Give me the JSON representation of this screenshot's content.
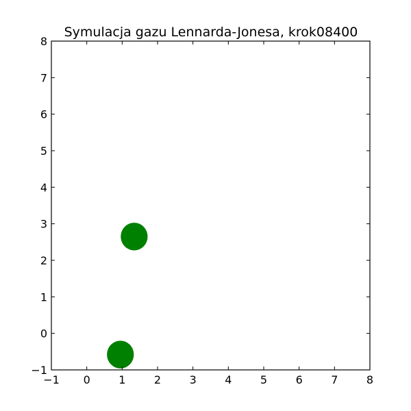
{
  "chart_data": {
    "type": "scatter",
    "title": "Symulacja gazu Lennarda-Jonesa, krok08400",
    "xlabel": "",
    "ylabel": "",
    "xlim": [
      -1,
      8
    ],
    "ylim": [
      -1,
      8
    ],
    "x_ticks": [
      -1,
      0,
      1,
      2,
      3,
      4,
      5,
      6,
      7,
      8
    ],
    "y_ticks": [
      -1,
      0,
      1,
      2,
      3,
      4,
      5,
      6,
      7,
      8
    ],
    "x_tick_labels": [
      "−1",
      "0",
      "1",
      "2",
      "3",
      "4",
      "5",
      "6",
      "7",
      "8"
    ],
    "y_tick_labels": [
      "−1",
      "0",
      "1",
      "2",
      "3",
      "4",
      "5",
      "6",
      "7",
      "8"
    ],
    "grid": false,
    "marker_color": "#008000",
    "marker_radius_units": 0.38,
    "points": [
      {
        "x": 1.34,
        "y": 2.65
      },
      {
        "x": 0.95,
        "y": -0.58
      }
    ]
  }
}
